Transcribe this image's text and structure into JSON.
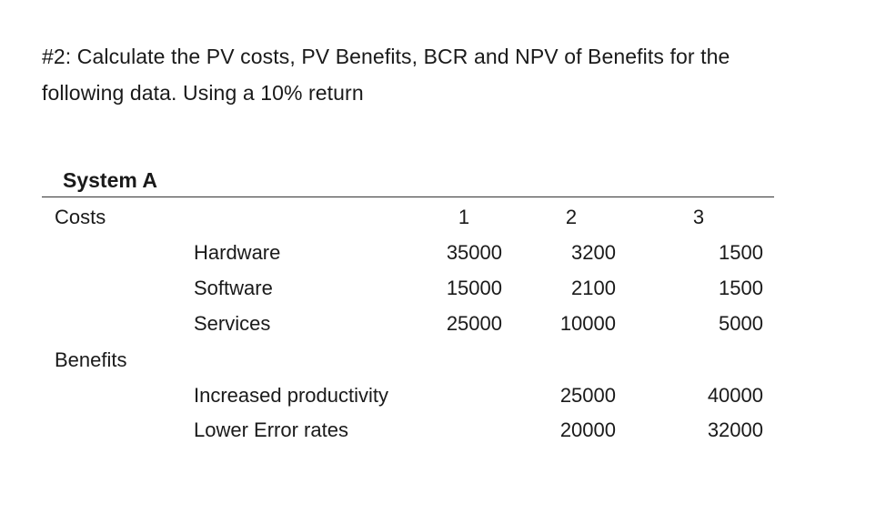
{
  "prompt": {
    "line1": "#2:  Calculate the PV costs, PV Benefits, BCR and NPV of Benefits for the",
    "line2": "following data.  Using a 10% return"
  },
  "system_title": "System A",
  "table": {
    "years": [
      "1",
      "2",
      "3"
    ],
    "costs_label": "Costs",
    "benefits_label": "Benefits",
    "costs": [
      {
        "label": "Hardware",
        "values": [
          "35000",
          "3200",
          "1500"
        ]
      },
      {
        "label": "Software",
        "values": [
          "15000",
          "2100",
          "1500"
        ]
      },
      {
        "label": "Services",
        "values": [
          "25000",
          "10000",
          "5000"
        ]
      }
    ],
    "benefits": [
      {
        "label": "Increased productivity",
        "values": [
          "",
          "25000",
          "40000"
        ]
      },
      {
        "label": "Lower Error rates",
        "values": [
          "",
          "20000",
          "32000"
        ]
      }
    ]
  }
}
